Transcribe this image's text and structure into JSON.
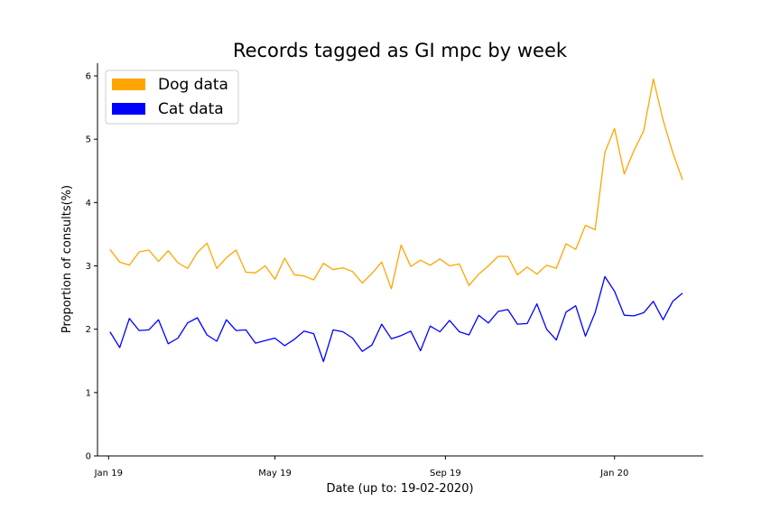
{
  "chart_data": {
    "type": "line",
    "title": "Records tagged as GI mpc by week",
    "xlabel": "Date (up to: 19-02-2020)",
    "ylabel": "Proportion of consults(%)",
    "ylim": [
      0,
      6.2
    ],
    "yticks": [
      0,
      1,
      2,
      3,
      4,
      5,
      6
    ],
    "xlim": [
      "2018-12-24",
      "2020-03-05"
    ],
    "xticks": [
      {
        "date": "2019-01-01",
        "label": "Jan 19"
      },
      {
        "date": "2019-05-01",
        "label": "May 19"
      },
      {
        "date": "2019-09-01",
        "label": "Sep 19"
      },
      {
        "date": "2020-01-01",
        "label": "Jan 20"
      }
    ],
    "legend_position": "top-left",
    "grid": false,
    "x": [
      "2019-01-02",
      "2019-01-09",
      "2019-01-16",
      "2019-01-23",
      "2019-01-30",
      "2019-02-06",
      "2019-02-13",
      "2019-02-20",
      "2019-02-27",
      "2019-03-06",
      "2019-03-13",
      "2019-03-20",
      "2019-03-27",
      "2019-04-03",
      "2019-04-10",
      "2019-04-17",
      "2019-04-24",
      "2019-05-01",
      "2019-05-08",
      "2019-05-15",
      "2019-05-22",
      "2019-05-29",
      "2019-06-05",
      "2019-06-12",
      "2019-06-19",
      "2019-06-26",
      "2019-07-03",
      "2019-07-10",
      "2019-07-17",
      "2019-07-24",
      "2019-07-31",
      "2019-08-07",
      "2019-08-14",
      "2019-08-21",
      "2019-08-28",
      "2019-09-04",
      "2019-09-11",
      "2019-09-18",
      "2019-09-25",
      "2019-10-02",
      "2019-10-09",
      "2019-10-16",
      "2019-10-23",
      "2019-10-30",
      "2019-11-06",
      "2019-11-13",
      "2019-11-20",
      "2019-11-27",
      "2019-12-04",
      "2019-12-11",
      "2019-12-18",
      "2019-12-25",
      "2020-01-01",
      "2020-01-08",
      "2020-01-15",
      "2020-01-22",
      "2020-01-29",
      "2020-02-05",
      "2020-02-12",
      "2020-02-19",
      "2020-02-26"
    ],
    "series": [
      {
        "name": "Dog data",
        "color": "#FFA500",
        "values": [
          3.26,
          3.06,
          3.01,
          3.22,
          3.25,
          3.07,
          3.24,
          3.05,
          2.96,
          3.21,
          3.36,
          2.96,
          3.13,
          3.25,
          2.9,
          2.89,
          3.0,
          2.79,
          3.12,
          2.86,
          2.84,
          2.78,
          3.04,
          2.94,
          2.97,
          2.91,
          2.73,
          2.88,
          3.06,
          2.64,
          3.33,
          2.99,
          3.09,
          3.01,
          3.11,
          3.0,
          3.03,
          2.69,
          2.87,
          3.0,
          3.15,
          3.15,
          2.86,
          2.98,
          2.87,
          3.01,
          2.96,
          3.35,
          3.26,
          3.64,
          3.57,
          4.79,
          5.17,
          4.45,
          4.82,
          5.13,
          5.95,
          5.3,
          4.79,
          4.36,
          null
        ]
      },
      {
        "name": "Cat data",
        "color": "#0000FF",
        "values": [
          1.96,
          1.71,
          2.17,
          1.98,
          1.99,
          2.15,
          1.77,
          1.86,
          2.1,
          2.18,
          1.91,
          1.81,
          2.15,
          1.98,
          1.99,
          1.78,
          1.82,
          1.86,
          1.74,
          1.84,
          1.97,
          1.93,
          1.49,
          1.99,
          1.96,
          1.86,
          1.65,
          1.75,
          2.08,
          1.85,
          1.9,
          1.97,
          1.66,
          2.05,
          1.96,
          2.14,
          1.96,
          1.91,
          2.22,
          2.1,
          2.28,
          2.31,
          2.08,
          2.09,
          2.4,
          2.0,
          1.83,
          2.27,
          2.37,
          1.89,
          2.26,
          2.83,
          2.6,
          2.22,
          2.21,
          2.26,
          2.44,
          2.15,
          2.44,
          2.57,
          null
        ]
      }
    ]
  }
}
